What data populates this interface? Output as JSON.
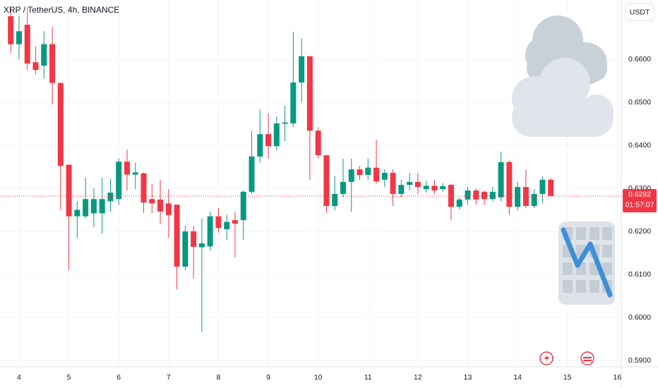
{
  "chart_data": {
    "type": "candlestick",
    "title": "XRP / TetherUS, 4h, BINANCE",
    "currency": "USDT",
    "x": [
      3.8333,
      4,
      4.1667,
      4.3333,
      4.5,
      4.6667,
      4.8333,
      5,
      5.1667,
      5.3333,
      5.5,
      5.6667,
      5.8333,
      6,
      6.1667,
      6.3333,
      6.5,
      6.6667,
      6.8333,
      7,
      7.1667,
      7.3333,
      7.5,
      7.6667,
      7.8333,
      8,
      8.1667,
      8.3333,
      8.5,
      8.6667,
      8.8333,
      9,
      9.1667,
      9.3333,
      9.5,
      9.6667,
      9.8333,
      10,
      10.1667,
      10.3333,
      10.5,
      10.6667,
      10.8333,
      11,
      11.1667,
      11.3333,
      11.5,
      11.6667,
      11.8333,
      12,
      12.1667,
      12.3333,
      12.5,
      12.6667,
      12.8333,
      13,
      13.1667,
      13.3333,
      13.5,
      13.6667,
      13.8333,
      14,
      14.1667,
      14.3333,
      14.5,
      14.6667
    ],
    "open": [
      0.67,
      0.6635,
      0.668,
      0.6593,
      0.6585,
      0.6635,
      0.6545,
      0.6355,
      0.6235,
      0.6235,
      0.6242,
      0.6242,
      0.627,
      0.6275,
      0.6362,
      0.6332,
      0.6335,
      0.6275,
      0.6274,
      0.6265,
      0.6262,
      0.6118,
      0.62,
      0.6163,
      0.6165,
      0.6235,
      0.6205,
      0.6226,
      0.6226,
      0.6292,
      0.6374,
      0.6426,
      0.6398,
      0.645,
      0.6451,
      0.6546,
      0.6607,
      0.6434,
      0.6377,
      0.6259,
      0.6287,
      0.6315,
      0.6344,
      0.6331,
      0.6348,
      0.632,
      0.6336,
      0.6287,
      0.6308,
      0.6315,
      0.6298,
      0.6306,
      0.6298,
      0.6308,
      0.6257,
      0.6274,
      0.6295,
      0.6292,
      0.6275,
      0.6279,
      0.6361,
      0.6257,
      0.6303,
      0.6259,
      0.6287,
      0.632
    ],
    "high": [
      0.672,
      0.67,
      0.672,
      0.663,
      0.6665,
      0.6675,
      0.6545,
      0.6355,
      0.627,
      0.6325,
      0.63,
      0.6325,
      0.6322,
      0.637,
      0.639,
      0.636,
      0.6337,
      0.631,
      0.632,
      0.6298,
      0.6262,
      0.6213,
      0.6213,
      0.623,
      0.6246,
      0.6254,
      0.6238,
      0.6246,
      0.6295,
      0.6434,
      0.6483,
      0.6475,
      0.6467,
      0.6492,
      0.6664,
      0.6648,
      0.6607,
      0.6442,
      0.6377,
      0.6328,
      0.6369,
      0.6369,
      0.6352,
      0.6369,
      0.6413,
      0.6344,
      0.6344,
      0.632,
      0.6336,
      0.6336,
      0.6318,
      0.632,
      0.6312,
      0.6311,
      0.6279,
      0.6303,
      0.63,
      0.6295,
      0.6303,
      0.6385,
      0.6365,
      0.6315,
      0.6344,
      0.6298,
      0.6328,
      0.6324
    ],
    "low": [
      0.6615,
      0.66,
      0.6575,
      0.6565,
      0.6555,
      0.6495,
      0.625,
      0.611,
      0.6185,
      0.623,
      0.621,
      0.6195,
      0.6245,
      0.6262,
      0.6295,
      0.6298,
      0.6243,
      0.6242,
      0.6217,
      0.6185,
      0.6065,
      0.611,
      0.609,
      0.5967,
      0.6156,
      0.6197,
      0.618,
      0.614,
      0.618,
      0.6287,
      0.636,
      0.6369,
      0.6388,
      0.641,
      0.6443,
      0.65,
      0.632,
      0.6369,
      0.6243,
      0.6249,
      0.6279,
      0.6246,
      0.632,
      0.632,
      0.6311,
      0.6303,
      0.6259,
      0.6279,
      0.6295,
      0.6287,
      0.629,
      0.6287,
      0.6292,
      0.6226,
      0.6251,
      0.6262,
      0.6262,
      0.6262,
      0.627,
      0.627,
      0.6238,
      0.6249,
      0.6254,
      0.6254,
      0.6266,
      0.6282
    ],
    "close": [
      0.6635,
      0.6665,
      0.659,
      0.6575,
      0.6635,
      0.6545,
      0.6352,
      0.6235,
      0.625,
      0.6275,
      0.6275,
      0.6275,
      0.629,
      0.6362,
      0.6332,
      0.6337,
      0.6267,
      0.6265,
      0.6246,
      0.6238,
      0.6118,
      0.62,
      0.6164,
      0.6172,
      0.6235,
      0.6208,
      0.6222,
      0.6218,
      0.6292,
      0.6374,
      0.6426,
      0.6398,
      0.6451,
      0.6453,
      0.6546,
      0.6607,
      0.6434,
      0.6377,
      0.6259,
      0.6287,
      0.6315,
      0.6344,
      0.6331,
      0.6348,
      0.6316,
      0.6336,
      0.6287,
      0.6308,
      0.6315,
      0.6303,
      0.6306,
      0.6295,
      0.6305,
      0.6257,
      0.6274,
      0.6295,
      0.6274,
      0.6275,
      0.6292,
      0.6361,
      0.6257,
      0.6303,
      0.6259,
      0.6287,
      0.632,
      0.6282
    ],
    "up_color": "#089981",
    "down_color": "#f23645",
    "xlim": [
      3.618,
      16.08
    ],
    "xticks": [
      4,
      5,
      6,
      7,
      8,
      9,
      10,
      11,
      12,
      13,
      14,
      15,
      16
    ],
    "ylim": [
      0.58852,
      0.67377
    ],
    "yticks": [
      {
        "value": 0.59,
        "label": "0.5900"
      },
      {
        "value": 0.6,
        "label": "0.6000"
      },
      {
        "value": 0.61,
        "label": "0.6100"
      },
      {
        "value": 0.62,
        "label": "0.6200"
      },
      {
        "value": 0.63,
        "label": "0.6300"
      },
      {
        "value": 0.64,
        "label": "0.6400"
      },
      {
        "value": 0.65,
        "label": "0.6500"
      },
      {
        "value": 0.66,
        "label": "0.6600"
      }
    ],
    "grid": true,
    "last_price": {
      "value": 0.6282,
      "label": "0.6282"
    },
    "countdown": "01:57:07"
  }
}
